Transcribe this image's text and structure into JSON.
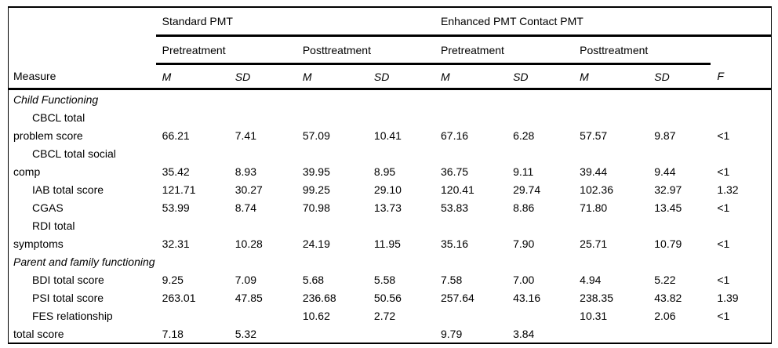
{
  "table": {
    "groups": [
      {
        "label": "Standard PMT"
      },
      {
        "label": "Enhanced PMT Contact PMT"
      }
    ],
    "subgroups": [
      "Pretreatment",
      "Posttreatment",
      "Pretreatment",
      "Posttreatment"
    ],
    "column_headers": {
      "measure": "Measure",
      "stats": [
        "M",
        "SD",
        "M",
        "SD",
        "M",
        "SD",
        "M",
        "SD"
      ],
      "f": "F"
    },
    "rows": [
      {
        "label": "Child Functioning",
        "type": "section",
        "indent": false,
        "values": [
          "",
          "",
          "",
          "",
          "",
          "",
          "",
          "",
          ""
        ]
      },
      {
        "label": "CBCL total",
        "type": "item",
        "indent": true,
        "values": [
          "",
          "",
          "",
          "",
          "",
          "",
          "",
          "",
          ""
        ]
      },
      {
        "label": "problem score",
        "type": "item",
        "indent": false,
        "values": [
          "66.21",
          "7.41",
          "57.09",
          "10.41",
          "67.16",
          "6.28",
          "57.57",
          "9.87",
          "<1"
        ]
      },
      {
        "label": "CBCL total social",
        "type": "item",
        "indent": true,
        "values": [
          "",
          "",
          "",
          "",
          "",
          "",
          "",
          "",
          ""
        ]
      },
      {
        "label": "comp",
        "type": "item",
        "indent": false,
        "values": [
          "35.42",
          "8.93",
          "39.95",
          "8.95",
          "36.75",
          "9.11",
          "39.44",
          "9.44",
          "<1"
        ]
      },
      {
        "label": "IAB total score",
        "type": "item",
        "indent": true,
        "values": [
          "121.71",
          "30.27",
          "99.25",
          "29.10",
          "120.41",
          "29.74",
          "102.36",
          "32.97",
          "1.32"
        ]
      },
      {
        "label": "CGAS",
        "type": "item",
        "indent": true,
        "values": [
          "53.99",
          "8.74",
          "70.98",
          "13.73",
          "53.83",
          "8.86",
          "71.80",
          "13.45",
          "<1"
        ]
      },
      {
        "label": "RDI total",
        "type": "item",
        "indent": true,
        "values": [
          "",
          "",
          "",
          "",
          "",
          "",
          "",
          "",
          ""
        ]
      },
      {
        "label": "symptoms",
        "type": "item",
        "indent": false,
        "values": [
          "32.31",
          "10.28",
          "24.19",
          "11.95",
          "35.16",
          "7.90",
          "25.71",
          "10.79",
          "<1"
        ]
      },
      {
        "label": "Parent and family functioning",
        "type": "section",
        "indent": false,
        "values": [
          "",
          "",
          "",
          "",
          "",
          "",
          "",
          "",
          ""
        ]
      },
      {
        "label": "BDI total score",
        "type": "item",
        "indent": true,
        "values": [
          "9.25",
          "7.09",
          "5.68",
          "5.58",
          "7.58",
          "7.00",
          "4.94",
          "5.22",
          "<1"
        ]
      },
      {
        "label": "PSI total score",
        "type": "item",
        "indent": true,
        "values": [
          "263.01",
          "47.85",
          "236.68",
          "50.56",
          "257.64",
          "43.16",
          "238.35",
          "43.82",
          "1.39"
        ]
      },
      {
        "label": "FES relationship",
        "type": "item",
        "indent": true,
        "values": [
          "",
          "",
          "10.62",
          "2.72",
          "",
          "",
          "10.31",
          "2.06",
          "<1"
        ]
      },
      {
        "label": "total score",
        "type": "item",
        "indent": false,
        "values": [
          "7.18",
          "5.32",
          "",
          "",
          "9.79",
          "3.84",
          "",
          "",
          ""
        ]
      }
    ]
  }
}
